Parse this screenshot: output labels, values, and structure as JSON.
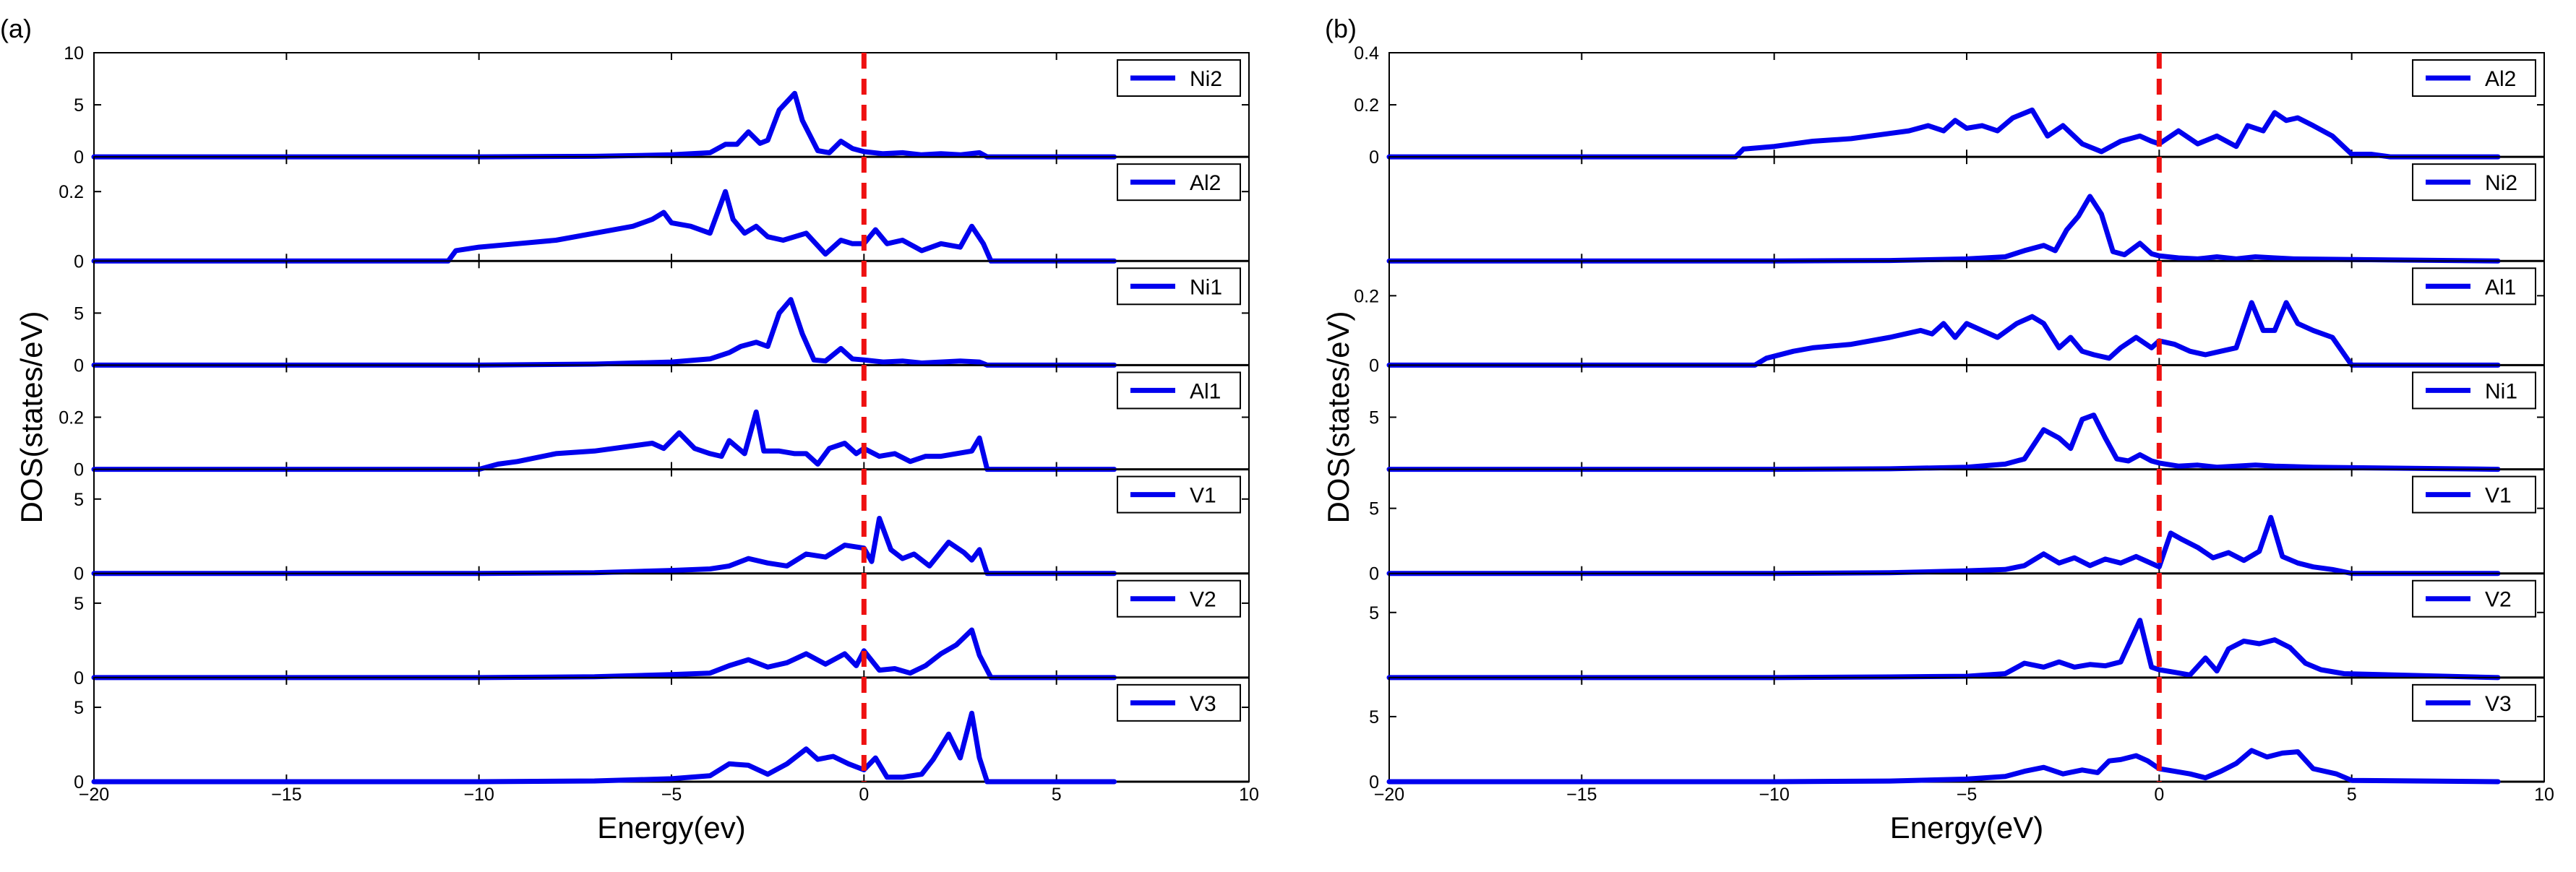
{
  "chart_data": [
    {
      "type": "line",
      "panel_label": "(a)",
      "xlabel": "Energy(ev)",
      "ylabel": "DOS(states/eV)",
      "xlim": [
        -20,
        10
      ],
      "xticks": [
        -20,
        -15,
        -10,
        -5,
        0,
        5,
        10
      ],
      "fermi_level": 0,
      "legend_position": "top-right",
      "subplots": [
        {
          "name": "Ni2",
          "ylim": [
            0,
            10
          ],
          "yticks": [
            0,
            5,
            10
          ],
          "x": [
            -20,
            -10,
            -7,
            -5,
            -4,
            -3.6,
            -3.3,
            -3.0,
            -2.7,
            -2.5,
            -2.2,
            -1.8,
            -1.6,
            -1.2,
            -0.9,
            -0.6,
            -0.3,
            0,
            0.5,
            1,
            1.5,
            2,
            2.5,
            3,
            3.2,
            6.5
          ],
          "values": [
            0,
            0,
            0.05,
            0.2,
            0.4,
            1.2,
            1.2,
            2.4,
            1.3,
            1.6,
            4.5,
            6.1,
            3.5,
            0.6,
            0.4,
            1.5,
            0.8,
            0.5,
            0.3,
            0.4,
            0.2,
            0.3,
            0.2,
            0.4,
            0,
            0
          ]
        },
        {
          "name": "Al2",
          "ylim": [
            0,
            0.3
          ],
          "yticks": [
            0,
            0.2
          ],
          "x": [
            -20,
            -10.8,
            -10.6,
            -10,
            -9,
            -8,
            -7,
            -6,
            -5.5,
            -5.2,
            -5,
            -4.5,
            -4,
            -3.6,
            -3.4,
            -3.1,
            -2.8,
            -2.5,
            -2.1,
            -1.5,
            -1,
            -0.6,
            -0.3,
            0,
            0.3,
            0.6,
            1,
            1.5,
            2,
            2.5,
            2.8,
            3.1,
            3.3,
            6.5
          ],
          "values": [
            0,
            0,
            0.03,
            0.04,
            0.05,
            0.06,
            0.08,
            0.1,
            0.12,
            0.14,
            0.11,
            0.1,
            0.08,
            0.2,
            0.12,
            0.08,
            0.1,
            0.07,
            0.06,
            0.08,
            0.02,
            0.06,
            0.05,
            0.05,
            0.09,
            0.05,
            0.06,
            0.03,
            0.05,
            0.04,
            0.1,
            0.05,
            0,
            0
          ]
        },
        {
          "name": "Ni1",
          "ylim": [
            0,
            10
          ],
          "yticks": [
            0,
            5
          ],
          "x": [
            -20,
            -10,
            -7,
            -5,
            -4,
            -3.5,
            -3.2,
            -2.8,
            -2.5,
            -2.2,
            -1.9,
            -1.6,
            -1.3,
            -1.0,
            -0.6,
            -0.3,
            0,
            0.5,
            1,
            1.5,
            2,
            2.5,
            3,
            3.2,
            6.5
          ],
          "values": [
            0,
            0,
            0.1,
            0.3,
            0.6,
            1.2,
            1.8,
            2.2,
            1.8,
            5.0,
            6.3,
            3.0,
            0.5,
            0.4,
            1.6,
            0.6,
            0.5,
            0.3,
            0.4,
            0.2,
            0.3,
            0.4,
            0.3,
            0,
            0
          ]
        },
        {
          "name": "Al1",
          "ylim": [
            0,
            0.4
          ],
          "yticks": [
            0,
            0.2
          ],
          "x": [
            -20,
            -10,
            -9.5,
            -9,
            -8,
            -7,
            -6,
            -5.5,
            -5.2,
            -4.8,
            -4.4,
            -4,
            -3.7,
            -3.5,
            -3.1,
            -2.8,
            -2.6,
            -2.2,
            -1.8,
            -1.5,
            -1.2,
            -0.9,
            -0.5,
            -0.2,
            0,
            0.4,
            0.8,
            1.2,
            1.6,
            2,
            2.4,
            2.8,
            3.0,
            3.2,
            6.5
          ],
          "values": [
            0,
            0,
            0.02,
            0.03,
            0.06,
            0.07,
            0.09,
            0.1,
            0.08,
            0.14,
            0.08,
            0.06,
            0.05,
            0.11,
            0.06,
            0.22,
            0.07,
            0.07,
            0.06,
            0.06,
            0.02,
            0.08,
            0.1,
            0.06,
            0.08,
            0.05,
            0.06,
            0.03,
            0.05,
            0.05,
            0.06,
            0.07,
            0.12,
            0,
            0
          ]
        },
        {
          "name": "V1",
          "ylim": [
            0,
            7
          ],
          "yticks": [
            0,
            5
          ],
          "x": [
            -20,
            -10,
            -7,
            -5,
            -4,
            -3.5,
            -3.0,
            -2.5,
            -2.0,
            -1.5,
            -1.0,
            -0.5,
            0,
            0.2,
            0.4,
            0.7,
            1.0,
            1.3,
            1.7,
            2.2,
            2.6,
            2.8,
            3.0,
            3.2,
            6.5
          ],
          "values": [
            0,
            0,
            0.05,
            0.2,
            0.3,
            0.5,
            1.0,
            0.7,
            0.5,
            1.3,
            1.1,
            1.9,
            1.7,
            0.8,
            3.7,
            1.6,
            1.0,
            1.3,
            0.5,
            2.1,
            1.4,
            0.9,
            1.6,
            0,
            0
          ]
        },
        {
          "name": "V2",
          "ylim": [
            0,
            7
          ],
          "yticks": [
            0,
            5
          ],
          "x": [
            -20,
            -10,
            -7,
            -5,
            -4,
            -3.5,
            -3,
            -2.5,
            -2,
            -1.5,
            -1,
            -0.5,
            -0.2,
            0,
            0.4,
            0.8,
            1.2,
            1.6,
            2,
            2.4,
            2.8,
            3.0,
            3.3,
            6.5
          ],
          "values": [
            0,
            0,
            0.05,
            0.2,
            0.3,
            0.8,
            1.2,
            0.7,
            1.0,
            1.6,
            0.9,
            1.6,
            0.8,
            1.8,
            0.5,
            0.6,
            0.3,
            0.8,
            1.6,
            2.2,
            3.2,
            1.5,
            0,
            0
          ]
        },
        {
          "name": "V3",
          "ylim": [
            0,
            7
          ],
          "yticks": [
            0,
            5
          ],
          "x": [
            -20,
            -10,
            -7,
            -5,
            -4,
            -3.5,
            -3,
            -2.5,
            -2,
            -1.5,
            -1.2,
            -0.8,
            -0.4,
            0,
            0.3,
            0.6,
            1,
            1.5,
            1.8,
            2.2,
            2.5,
            2.8,
            3.0,
            3.2,
            6.5
          ],
          "values": [
            0,
            0,
            0.05,
            0.2,
            0.4,
            1.2,
            1.1,
            0.5,
            1.2,
            2.2,
            1.5,
            1.7,
            1.2,
            0.8,
            1.6,
            0.3,
            0.3,
            0.5,
            1.5,
            3.2,
            1.6,
            4.6,
            1.6,
            0,
            0
          ]
        }
      ]
    },
    {
      "type": "line",
      "panel_label": "(b)",
      "xlabel": "Energy(eV)",
      "ylabel": "DOS(states/eV)",
      "xlim": [
        -20,
        10
      ],
      "xticks": [
        -20,
        -15,
        -10,
        -5,
        0,
        5,
        10
      ],
      "fermi_level": 0,
      "legend_position": "top-right",
      "subplots": [
        {
          "name": "Al2",
          "ylim": [
            0,
            0.4
          ],
          "yticks": [
            0,
            0.2,
            0.4
          ],
          "x": [
            -20,
            -11,
            -10.8,
            -10,
            -9,
            -8,
            -7,
            -6.5,
            -6,
            -5.6,
            -5.3,
            -5,
            -4.6,
            -4.2,
            -3.8,
            -3.3,
            -2.9,
            -2.5,
            -2,
            -1.5,
            -1,
            -0.5,
            -0.2,
            0,
            0.5,
            1,
            1.5,
            2,
            2.3,
            2.7,
            3,
            3.3,
            3.6,
            4,
            4.5,
            5,
            5.5,
            6,
            8.8
          ],
          "values": [
            0,
            0,
            0.03,
            0.04,
            0.06,
            0.07,
            0.09,
            0.1,
            0.12,
            0.1,
            0.14,
            0.11,
            0.12,
            0.1,
            0.15,
            0.18,
            0.08,
            0.12,
            0.05,
            0.02,
            0.06,
            0.08,
            0.06,
            0.05,
            0.1,
            0.05,
            0.08,
            0.04,
            0.12,
            0.1,
            0.17,
            0.14,
            0.15,
            0.12,
            0.08,
            0.01,
            0.01,
            0,
            0
          ]
        },
        {
          "name": "Ni2",
          "ylim": [
            0,
            10
          ],
          "yticks": [],
          "x": [
            -20,
            -10,
            -7,
            -5,
            -4,
            -3.5,
            -3.0,
            -2.7,
            -2.4,
            -2.1,
            -1.8,
            -1.5,
            -1.2,
            -0.9,
            -0.5,
            -0.2,
            0,
            0.5,
            1,
            1.5,
            2,
            2.5,
            3,
            3.5,
            8.8
          ],
          "values": [
            0,
            0,
            0.05,
            0.2,
            0.4,
            1.0,
            1.5,
            1.0,
            3.0,
            4.3,
            6.2,
            4.5,
            0.9,
            0.6,
            1.7,
            0.7,
            0.5,
            0.3,
            0.2,
            0.4,
            0.2,
            0.4,
            0.3,
            0.2,
            0
          ]
        },
        {
          "name": "Al1",
          "ylim": [
            0,
            0.3
          ],
          "yticks": [
            0,
            0.2
          ],
          "x": [
            -20,
            -10.5,
            -10.2,
            -9.5,
            -9,
            -8,
            -7,
            -6.2,
            -5.9,
            -5.6,
            -5.3,
            -5,
            -4.6,
            -4.2,
            -3.7,
            -3.3,
            -3,
            -2.6,
            -2.3,
            -2,
            -1.7,
            -1.3,
            -1,
            -0.6,
            -0.2,
            0,
            0.4,
            0.8,
            1.2,
            1.6,
            2,
            2.4,
            2.7,
            3,
            3.3,
            3.6,
            4,
            4.5,
            5,
            8.8
          ],
          "values": [
            0,
            0,
            0.02,
            0.04,
            0.05,
            0.06,
            0.08,
            0.1,
            0.09,
            0.12,
            0.08,
            0.12,
            0.1,
            0.08,
            0.12,
            0.14,
            0.12,
            0.05,
            0.08,
            0.04,
            0.03,
            0.02,
            0.05,
            0.08,
            0.05,
            0.07,
            0.06,
            0.04,
            0.03,
            0.04,
            0.05,
            0.18,
            0.1,
            0.1,
            0.18,
            0.12,
            0.1,
            0.08,
            0,
            0
          ]
        },
        {
          "name": "Ni1",
          "ylim": [
            0,
            10
          ],
          "yticks": [
            5
          ],
          "x": [
            -20,
            -10,
            -7,
            -5,
            -4,
            -3.5,
            -3.0,
            -2.6,
            -2.3,
            -2.0,
            -1.7,
            -1.4,
            -1.1,
            -0.8,
            -0.5,
            -0.2,
            0,
            0.5,
            1,
            1.5,
            2,
            2.5,
            3,
            4,
            8.8
          ],
          "values": [
            0,
            0,
            0.05,
            0.2,
            0.5,
            1.0,
            3.8,
            3.0,
            2.0,
            4.8,
            5.2,
            3.0,
            1.0,
            0.8,
            1.4,
            0.8,
            0.6,
            0.3,
            0.4,
            0.2,
            0.3,
            0.4,
            0.3,
            0.2,
            0
          ]
        },
        {
          "name": "V1",
          "ylim": [
            0,
            8
          ],
          "yticks": [
            0,
            5
          ],
          "x": [
            -20,
            -10,
            -7,
            -5,
            -4,
            -3.5,
            -3.0,
            -2.6,
            -2.2,
            -1.8,
            -1.4,
            -1.0,
            -0.6,
            -0.3,
            0,
            0.3,
            0.6,
            1.0,
            1.4,
            1.8,
            2.2,
            2.6,
            2.9,
            3.2,
            3.6,
            4.0,
            4.5,
            5,
            8.8
          ],
          "values": [
            0,
            0,
            0.05,
            0.2,
            0.3,
            0.6,
            1.5,
            0.8,
            1.2,
            0.6,
            1.1,
            0.8,
            1.3,
            0.9,
            0.5,
            3.1,
            2.6,
            2.0,
            1.2,
            1.6,
            1.0,
            1.7,
            4.3,
            1.3,
            0.8,
            0.5,
            0.3,
            0,
            0
          ]
        },
        {
          "name": "V2",
          "ylim": [
            0,
            8
          ],
          "yticks": [
            5
          ],
          "x": [
            -20,
            -10,
            -7,
            -5,
            -4,
            -3.5,
            -3.0,
            -2.6,
            -2.2,
            -1.8,
            -1.4,
            -1.0,
            -0.5,
            -0.2,
            0,
            0.4,
            0.8,
            1.2,
            1.5,
            1.8,
            2.2,
            2.6,
            3.0,
            3.4,
            3.8,
            4.2,
            4.8,
            8.8
          ],
          "values": [
            0,
            0,
            0.05,
            0.1,
            0.3,
            1.1,
            0.8,
            1.2,
            0.8,
            1.0,
            0.9,
            1.2,
            4.4,
            0.8,
            0.6,
            0.4,
            0.2,
            1.5,
            0.5,
            2.2,
            2.8,
            2.6,
            2.9,
            2.3,
            1.1,
            0.6,
            0.3,
            0
          ]
        },
        {
          "name": "V3",
          "ylim": [
            0,
            8
          ],
          "yticks": [
            0,
            5
          ],
          "x": [
            -20,
            -10,
            -7,
            -5,
            -4,
            -3.5,
            -3.0,
            -2.5,
            -2.0,
            -1.6,
            -1.3,
            -1.0,
            -0.6,
            -0.3,
            0,
            0.4,
            0.8,
            1.2,
            1.6,
            2.0,
            2.4,
            2.8,
            3.2,
            3.6,
            4.0,
            4.6,
            5,
            8.8
          ],
          "values": [
            0,
            0,
            0.05,
            0.2,
            0.4,
            0.8,
            1.1,
            0.6,
            0.9,
            0.7,
            1.6,
            1.7,
            2.0,
            1.6,
            1.0,
            0.8,
            0.6,
            0.3,
            0.8,
            1.4,
            2.4,
            1.9,
            2.2,
            2.3,
            1.0,
            0.6,
            0.1,
            0
          ]
        }
      ]
    }
  ]
}
